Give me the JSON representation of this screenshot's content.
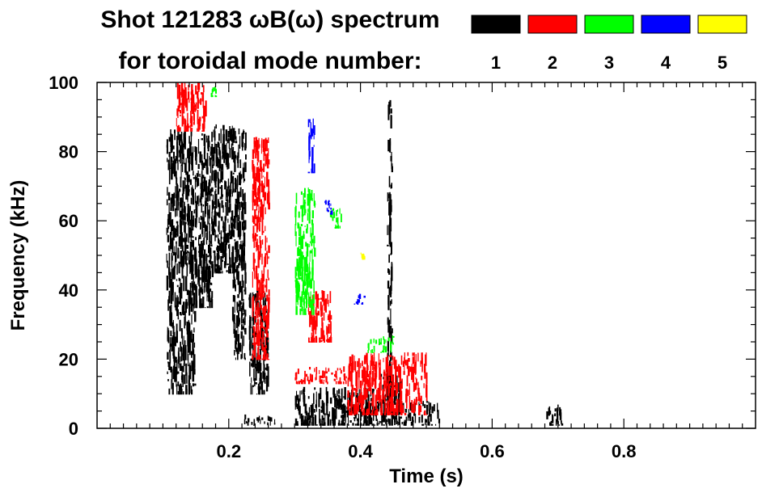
{
  "chart_data": {
    "type": "heatmap",
    "title_line1": "Shot 121283 ωB(ω) spectrum",
    "title_line2": "for toroidal mode number:",
    "xlabel": "Time (s)",
    "ylabel": "Frequency (kHz)",
    "xlim": [
      0.0,
      1.0
    ],
    "ylim": [
      0,
      100
    ],
    "x_ticks": [
      0.2,
      0.4,
      0.6,
      0.8
    ],
    "x_tick_labels": [
      "0.2",
      "0.4",
      "0.6",
      "0.8"
    ],
    "y_ticks": [
      0,
      20,
      40,
      60,
      80,
      100
    ],
    "y_tick_labels": [
      "0",
      "20",
      "40",
      "60",
      "80",
      "100"
    ],
    "legend": [
      {
        "mode": "1",
        "color": "#000000"
      },
      {
        "mode": "2",
        "color": "#ff0000"
      },
      {
        "mode": "3",
        "color": "#00ff00"
      },
      {
        "mode": "4",
        "color": "#0000ff"
      },
      {
        "mode": "5",
        "color": "#ffff00"
      }
    ],
    "regions": [
      {
        "mode": 1,
        "t": [
          0.105,
          0.14
        ],
        "f": [
          10,
          87
        ]
      },
      {
        "mode": 1,
        "t": [
          0.14,
          0.175
        ],
        "f": [
          35,
          86
        ]
      },
      {
        "mode": 1,
        "t": [
          0.175,
          0.225
        ],
        "f": [
          45,
          88
        ]
      },
      {
        "mode": 1,
        "t": [
          0.205,
          0.225
        ],
        "f": [
          20,
          50
        ]
      },
      {
        "mode": 1,
        "t": [
          0.138,
          0.148
        ],
        "f": [
          10,
          40
        ]
      },
      {
        "mode": 1,
        "t": [
          0.23,
          0.26
        ],
        "f": [
          10,
          40
        ]
      },
      {
        "mode": 1,
        "t": [
          0.22,
          0.27
        ],
        "f": [
          1,
          4
        ]
      },
      {
        "mode": 1,
        "t": [
          0.3,
          0.42
        ],
        "f": [
          1,
          12
        ]
      },
      {
        "mode": 1,
        "t": [
          0.37,
          0.52
        ],
        "f": [
          1,
          8
        ]
      },
      {
        "mode": 1,
        "t": [
          0.43,
          0.46
        ],
        "f": [
          2,
          16
        ]
      },
      {
        "mode": 1,
        "t": [
          0.44,
          0.447
        ],
        "f": [
          10,
          96
        ]
      },
      {
        "mode": 1,
        "t": [
          0.68,
          0.71
        ],
        "f": [
          1,
          7
        ]
      },
      {
        "mode": 2,
        "t": [
          0.12,
          0.165
        ],
        "f": [
          86,
          100
        ]
      },
      {
        "mode": 2,
        "t": [
          0.235,
          0.26
        ],
        "f": [
          20,
          85
        ]
      },
      {
        "mode": 2,
        "t": [
          0.32,
          0.355
        ],
        "f": [
          25,
          40
        ]
      },
      {
        "mode": 2,
        "t": [
          0.3,
          0.38
        ],
        "f": [
          13,
          18
        ]
      },
      {
        "mode": 2,
        "t": [
          0.38,
          0.5
        ],
        "f": [
          4,
          22
        ]
      },
      {
        "mode": 3,
        "t": [
          0.3,
          0.33
        ],
        "f": [
          33,
          70
        ]
      },
      {
        "mode": 3,
        "t": [
          0.35,
          0.37
        ],
        "f": [
          58,
          64
        ]
      },
      {
        "mode": 3,
        "t": [
          0.41,
          0.45
        ],
        "f": [
          22,
          27
        ]
      },
      {
        "mode": 3,
        "t": [
          0.17,
          0.18
        ],
        "f": [
          96,
          100
        ]
      },
      {
        "mode": 4,
        "t": [
          0.32,
          0.33
        ],
        "f": [
          74,
          90
        ]
      },
      {
        "mode": 4,
        "t": [
          0.345,
          0.355
        ],
        "f": [
          62,
          66
        ]
      },
      {
        "mode": 4,
        "t": [
          0.39,
          0.405
        ],
        "f": [
          36,
          39
        ]
      },
      {
        "mode": 5,
        "t": [
          0.4,
          0.405
        ],
        "f": [
          49,
          51
        ]
      }
    ]
  }
}
